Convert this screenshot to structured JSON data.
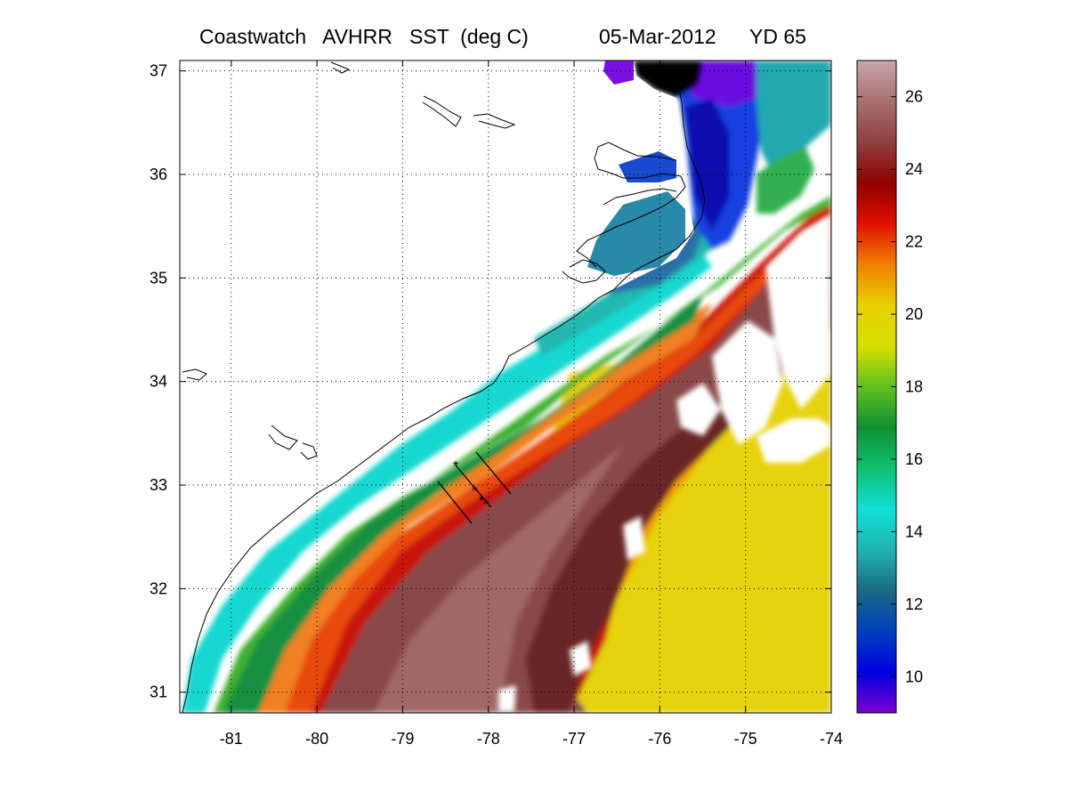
{
  "title": {
    "product": "Coastwatch   AVHRR   SST  (deg C)",
    "date": "05-Mar-2012",
    "year_day": "YD 65"
  },
  "map": {
    "lon_range": [
      -81.6,
      -74
    ],
    "lat_range": [
      30.8,
      37.1
    ],
    "lon_ticks": [
      "-81",
      "-80",
      "-79",
      "-78",
      "-77",
      "-76",
      "-75",
      "-74"
    ],
    "lat_ticks": [
      "37",
      "36",
      "35",
      "34",
      "33",
      "32",
      "31"
    ],
    "grid": "dotted"
  },
  "colorbar": {
    "range": [
      9,
      27
    ],
    "ticks": [
      "26",
      "24",
      "22",
      "20",
      "18",
      "16",
      "14",
      "12",
      "10"
    ],
    "colors": [
      "#7a00d0",
      "#0000e0",
      "#0040c0",
      "#1a6a80",
      "#20b4b0",
      "#10e0d8",
      "#10c070",
      "#109030",
      "#60c020",
      "#d8e000",
      "#e8d000",
      "#f08000",
      "#e01000",
      "#900000",
      "#904040",
      "#a87070",
      "#c8a8a8"
    ]
  },
  "chart_data": {
    "type": "heatmap",
    "variable": "SST (deg C)",
    "zlim": [
      9,
      27
    ],
    "xlabel": "",
    "ylabel": "",
    "xlim": [
      -81.6,
      -74
    ],
    "ylim": [
      30.8,
      37.1
    ],
    "grid": true,
    "transect_lines": 3,
    "transect_station_markers": 4
  }
}
